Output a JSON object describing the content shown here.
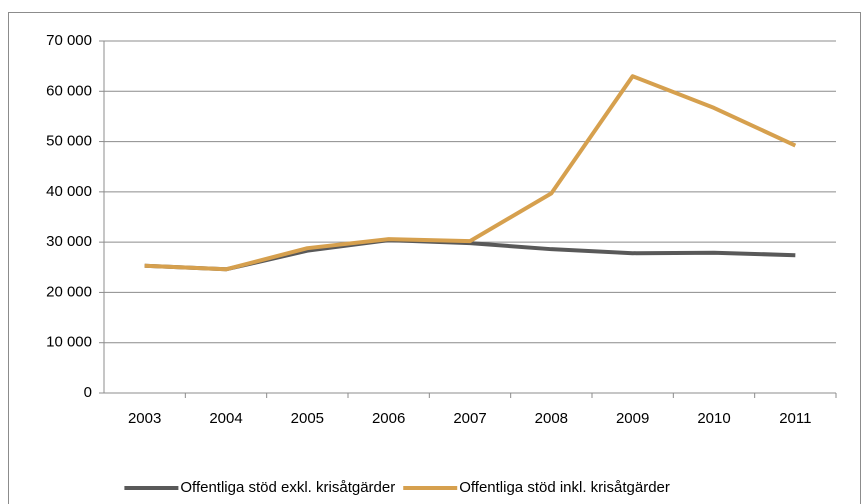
{
  "chart_data": {
    "type": "line",
    "categories": [
      "2003",
      "2004",
      "2005",
      "2006",
      "2007",
      "2008",
      "2009",
      "2010",
      "2011"
    ],
    "series": [
      {
        "name": "Offentliga stöd exkl. krisåtgärder",
        "color": "#595959",
        "values": [
          25300,
          24600,
          28300,
          30400,
          29800,
          28600,
          27800,
          27900,
          27400
        ]
      },
      {
        "name": "Offentliga stöd inkl. krisåtgärder",
        "color": "#d6a04e",
        "values": [
          25300,
          24600,
          28800,
          30600,
          30200,
          39700,
          63000,
          56700,
          49200
        ]
      }
    ],
    "ylim": [
      0,
      70000
    ],
    "yticks": [
      0,
      {
        "value": 10000,
        "label": "10 000"
      },
      {
        "value": 20000,
        "label": "20 000"
      },
      {
        "value": 30000,
        "label": "30 000"
      },
      {
        "value": 40000,
        "label": "40 000"
      },
      {
        "value": 50000,
        "label": "50 000"
      },
      {
        "value": 60000,
        "label": "60 000"
      },
      {
        "value": 70000,
        "label": "70 000"
      }
    ],
    "grid": true,
    "legend": "bottom"
  }
}
